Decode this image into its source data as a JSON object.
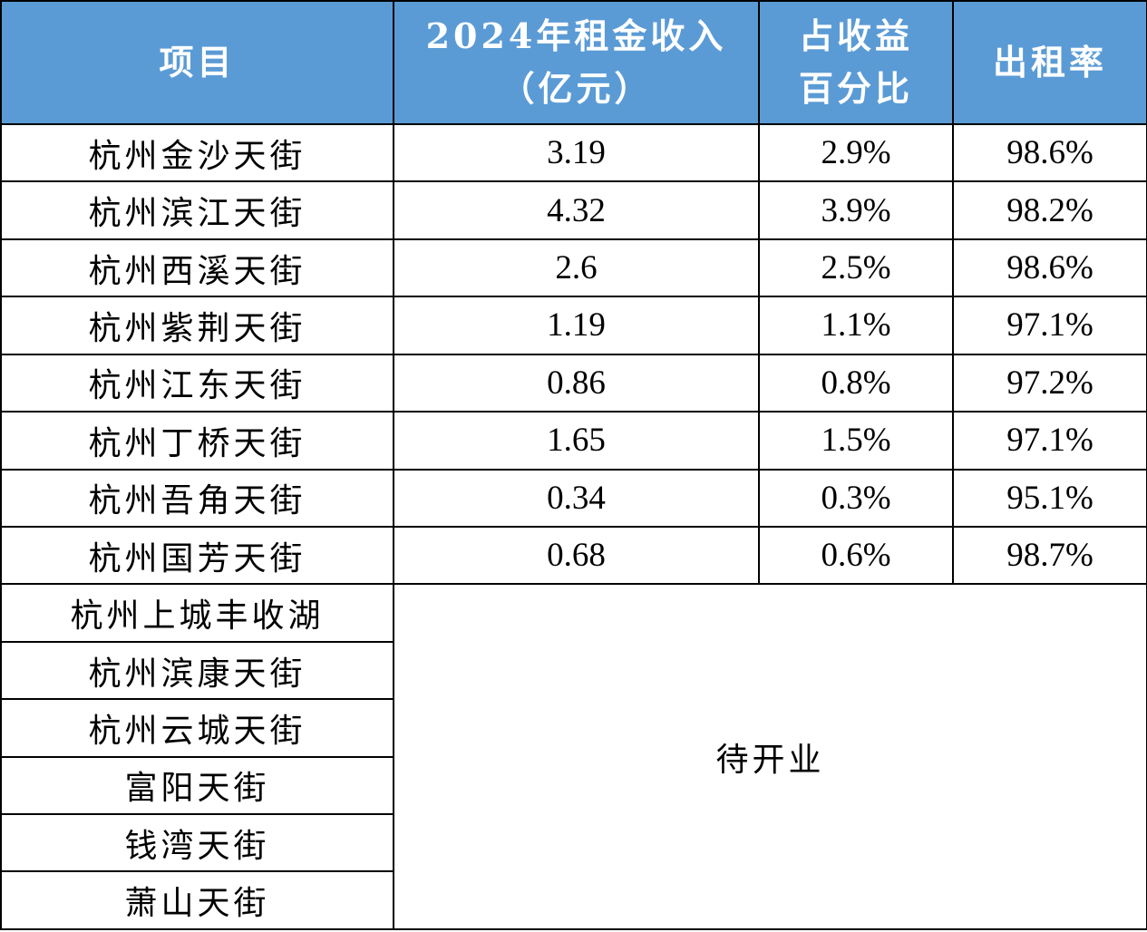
{
  "header": {
    "col_project": "项目",
    "col_rent_line1": "2024年租金收入",
    "col_rent_line2": "（亿元）",
    "col_share_line1": "占收益",
    "col_share_line2": "百分比",
    "col_occupancy": "出租率"
  },
  "rows": [
    {
      "name": "杭州金沙天街",
      "rent": "3.19",
      "share": "2.9%",
      "occupancy": "98.6%"
    },
    {
      "name": "杭州滨江天街",
      "rent": "4.32",
      "share": "3.9%",
      "occupancy": "98.2%"
    },
    {
      "name": "杭州西溪天街",
      "rent": "2.6",
      "share": "2.5%",
      "occupancy": "98.6%"
    },
    {
      "name": "杭州紫荆天街",
      "rent": "1.19",
      "share": "1.1%",
      "occupancy": "97.1%"
    },
    {
      "name": "杭州江东天街",
      "rent": "0.86",
      "share": "0.8%",
      "occupancy": "97.2%"
    },
    {
      "name": "杭州丁桥天街",
      "rent": "1.65",
      "share": "1.5%",
      "occupancy": "97.1%"
    },
    {
      "name": "杭州吾角天街",
      "rent": "0.34",
      "share": "0.3%",
      "occupancy": "95.1%"
    },
    {
      "name": "杭州国芳天街",
      "rent": "0.68",
      "share": "0.6%",
      "occupancy": "98.7%"
    }
  ],
  "pending_rows": [
    {
      "name": "杭州上城丰收湖"
    },
    {
      "name": "杭州滨康天街"
    },
    {
      "name": "杭州云城天街"
    },
    {
      "name": "富阳天街"
    },
    {
      "name": "钱湾天街"
    },
    {
      "name": "萧山天街"
    }
  ],
  "pending_label": "待开业",
  "colors": {
    "header_bg": "#5b9bd5",
    "header_text": "#ffffff",
    "border": "#000000"
  }
}
